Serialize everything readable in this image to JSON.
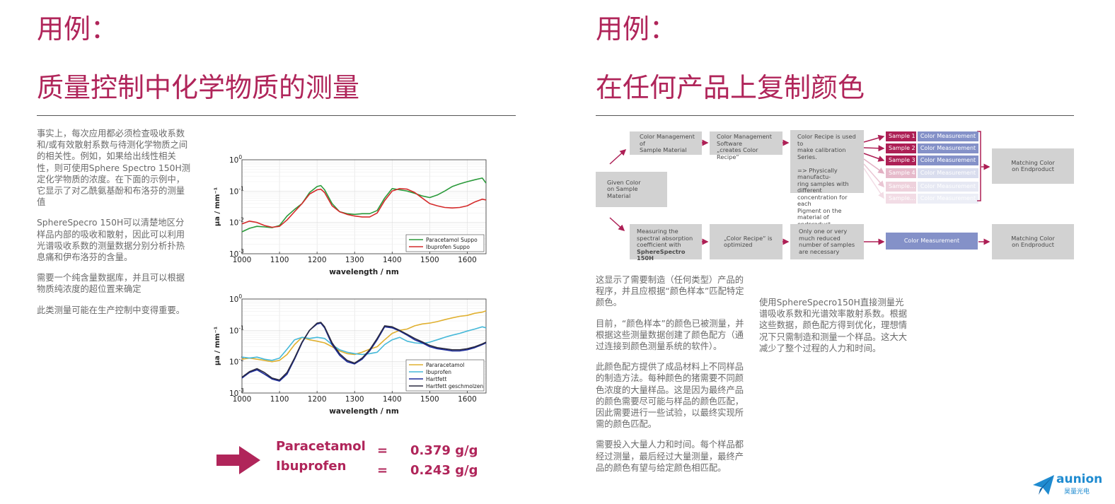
{
  "left": {
    "heading_small": "用例：",
    "heading_big": "质量控制中化学物质的测量",
    "paragraphs": [
      "事实上，每次应用都必须检查吸收系数和/或有效散射系数与待测化学物质之间的相关性。例如，如果给出线性相关性，则可使用Sphere Spectro 150H测定化学物质的浓度。在下面的示例中，它显示了对乙酰氨基酚和布洛芬的测量值",
      "SphereSpecro 150H可以清楚地区分样品内部的吸收和散射，因此可以利用光谱吸收系数的测量数据分别分析扑热息痛和伊布洛芬的含量。",
      "需要一个纯含量数据库，并且可以根据物质纯浓度的超位置来确定",
      "此类测量可能在生产控制中变得重要。"
    ],
    "results": [
      {
        "name": "Paracetamol",
        "eq": "=",
        "value": "0.379 g/g"
      },
      {
        "name": "Ibuprofen",
        "eq": "=",
        "value": "0.243 g/g"
      }
    ]
  },
  "right": {
    "heading_small": "用例：",
    "heading_big": "在任何产品上复制颜色",
    "flow": {
      "given": "Given Color\non Sample Material",
      "top": [
        "Color Management\nof\nSample Material",
        "Color Management\nSoftware\n„creates Color Recipe“",
        "Color Recipe is used to\nmake calibration Series.\n\n=> Physically manufactu-\nring samples with different\nconcentration for each\nPigment on the material of\nendproduct"
      ],
      "samples": [
        "Sample 1",
        "Sample 2",
        "Sample 3",
        "Sample 4",
        "Sample...",
        "Sample..."
      ],
      "measure_label": "Color Measurement",
      "matching": "Matching Color\non Endproduct",
      "bottom_first_lines": "Measuring the\nspectral absorption\ncoefficient with",
      "bottom_first_bold": "SphereSpectro 150H",
      "bottom": [
        "„Color Recipe“ is\noptimized",
        "Only one or very\nmuch reduced\nnumber of samples\nare necessary"
      ]
    },
    "col1": [
      "这显示了需要制造（任何类型）产品的程序，并且应根据“颜色样本”匹配特定颜色。",
      "目前，“颜色样本”的颜色已被测量，并根据这些测量数据创建了颜色配方（通过连接到颜色测量系统的软件）。",
      "此颜色配方提供了成品材料上不同样品的制造方法。每种颜色的猪需要不同颜色浓度的大量样品。这是因为最终产品的颜色需要尽可能与样品的颜色匹配，因此需要进行一些试验，以最终实现所需的颜色匹配。",
      "需要投入大量人力和时间。每个样品都经过测量，最后经过大量测量，最终产品的颜色有望与给定颜色相匹配。"
    ],
    "col2": "使用SphereSpecro150H直接测量光谱吸收系数和光谱效率散射系数。根据这些数据，颜色配方得到优化，理想情况下只需制造和测量一个样品。这大大减少了整个过程的人力和时间。"
  },
  "logo": {
    "name": "aunion",
    "sub": "昊量光电"
  },
  "chart_data": [
    {
      "type": "line",
      "xlabel": "wavelength / nm",
      "ylabel": "μa / mm⁻¹",
      "xlim": [
        1000,
        1650
      ],
      "ylim_log10": [
        -3,
        0
      ],
      "y_scale": "log",
      "x_ticks": [
        1000,
        1100,
        1200,
        1300,
        1400,
        1500,
        1600
      ],
      "legend": "bottom-right",
      "grid": true,
      "series": [
        {
          "name": "Paracetamol Suppo",
          "color": "#2a9a3a",
          "x": [
            1000,
            1020,
            1040,
            1060,
            1080,
            1100,
            1120,
            1140,
            1160,
            1180,
            1200,
            1210,
            1220,
            1240,
            1260,
            1280,
            1300,
            1320,
            1340,
            1360,
            1380,
            1400,
            1420,
            1440,
            1460,
            1480,
            1500,
            1520,
            1540,
            1560,
            1580,
            1600,
            1620,
            1640,
            1650
          ],
          "y": [
            0.005,
            0.0065,
            0.0075,
            0.0072,
            0.0068,
            0.008,
            0.016,
            0.026,
            0.04,
            0.09,
            0.14,
            0.15,
            0.11,
            0.04,
            0.022,
            0.019,
            0.018,
            0.019,
            0.019,
            0.024,
            0.06,
            0.12,
            0.11,
            0.1,
            0.085,
            0.07,
            0.062,
            0.075,
            0.1,
            0.14,
            0.17,
            0.2,
            0.23,
            0.26,
            0.18
          ]
        },
        {
          "name": "Ibuprofen Suppo",
          "color": "#d42a2a",
          "x": [
            1000,
            1020,
            1040,
            1060,
            1080,
            1100,
            1120,
            1140,
            1160,
            1180,
            1200,
            1210,
            1220,
            1240,
            1260,
            1280,
            1300,
            1320,
            1340,
            1360,
            1380,
            1400,
            1420,
            1440,
            1460,
            1480,
            1500,
            1520,
            1540,
            1560,
            1580,
            1600,
            1620,
            1640,
            1650
          ],
          "y": [
            0.009,
            0.011,
            0.01,
            0.008,
            0.007,
            0.0075,
            0.012,
            0.022,
            0.04,
            0.08,
            0.11,
            0.115,
            0.09,
            0.034,
            0.022,
            0.018,
            0.016,
            0.015,
            0.015,
            0.02,
            0.05,
            0.1,
            0.12,
            0.115,
            0.09,
            0.06,
            0.04,
            0.034,
            0.03,
            0.029,
            0.03,
            0.034,
            0.045,
            0.055,
            0.052
          ]
        }
      ]
    },
    {
      "type": "line",
      "xlabel": "wavelength / nm",
      "ylabel": "μa / mm⁻¹",
      "xlim": [
        1000,
        1650
      ],
      "ylim_log10": [
        -3,
        0
      ],
      "y_scale": "log",
      "x_ticks": [
        1000,
        1100,
        1200,
        1300,
        1400,
        1500,
        1600
      ],
      "legend": "bottom-right",
      "grid": true,
      "series": [
        {
          "name": "Pararacetamol",
          "color": "#e0b030",
          "x": [
            1000,
            1020,
            1040,
            1060,
            1080,
            1100,
            1120,
            1140,
            1160,
            1180,
            1200,
            1220,
            1240,
            1260,
            1280,
            1300,
            1320,
            1340,
            1360,
            1380,
            1400,
            1420,
            1440,
            1460,
            1480,
            1500,
            1520,
            1540,
            1560,
            1580,
            1600,
            1620,
            1640,
            1650
          ],
          "y": [
            0.012,
            0.013,
            0.012,
            0.011,
            0.01,
            0.011,
            0.017,
            0.035,
            0.06,
            0.05,
            0.045,
            0.04,
            0.03,
            0.022,
            0.018,
            0.017,
            0.02,
            0.025,
            0.03,
            0.05,
            0.08,
            0.1,
            0.11,
            0.14,
            0.16,
            0.17,
            0.19,
            0.22,
            0.25,
            0.28,
            0.3,
            0.35,
            0.38,
            0.42
          ]
        },
        {
          "name": "Ibuprofen",
          "color": "#45b8d8",
          "x": [
            1000,
            1020,
            1040,
            1060,
            1080,
            1100,
            1120,
            1140,
            1160,
            1180,
            1200,
            1220,
            1240,
            1260,
            1280,
            1300,
            1320,
            1340,
            1360,
            1380,
            1400,
            1420,
            1440,
            1460,
            1480,
            1500,
            1520,
            1540,
            1560,
            1580,
            1600,
            1620,
            1640,
            1650
          ],
          "y": [
            0.014,
            0.013,
            0.014,
            0.012,
            0.011,
            0.013,
            0.025,
            0.05,
            0.06,
            0.055,
            0.06,
            0.055,
            0.035,
            0.024,
            0.02,
            0.018,
            0.017,
            0.018,
            0.02,
            0.035,
            0.05,
            0.06,
            0.045,
            0.04,
            0.038,
            0.042,
            0.05,
            0.06,
            0.07,
            0.08,
            0.095,
            0.11,
            0.13,
            0.12
          ]
        },
        {
          "name": "Hartfett",
          "color": "#1a2a9a",
          "x": [
            1000,
            1020,
            1040,
            1060,
            1080,
            1100,
            1120,
            1140,
            1160,
            1180,
            1200,
            1210,
            1220,
            1240,
            1260,
            1280,
            1300,
            1320,
            1340,
            1360,
            1380,
            1400,
            1420,
            1440,
            1460,
            1480,
            1500,
            1520,
            1540,
            1560,
            1580,
            1600,
            1620,
            1640,
            1650
          ],
          "y": [
            0.003,
            0.0045,
            0.0055,
            0.004,
            0.0028,
            0.0024,
            0.004,
            0.012,
            0.04,
            0.1,
            0.16,
            0.17,
            0.12,
            0.035,
            0.016,
            0.01,
            0.0085,
            0.012,
            0.022,
            0.05,
            0.13,
            0.12,
            0.095,
            0.07,
            0.05,
            0.04,
            0.03,
            0.026,
            0.024,
            0.022,
            0.022,
            0.024,
            0.028,
            0.035,
            0.04
          ]
        },
        {
          "name": "Hartfett geschmolzen",
          "color": "#2a2a40",
          "x": [
            1000,
            1020,
            1040,
            1060,
            1080,
            1100,
            1120,
            1140,
            1160,
            1180,
            1200,
            1210,
            1220,
            1240,
            1260,
            1280,
            1300,
            1320,
            1340,
            1360,
            1380,
            1400,
            1420,
            1440,
            1460,
            1480,
            1500,
            1520,
            1540,
            1560,
            1580,
            1600,
            1620,
            1640,
            1650
          ],
          "y": [
            0.0032,
            0.0048,
            0.006,
            0.0045,
            0.003,
            0.0026,
            0.0045,
            0.013,
            0.042,
            0.1,
            0.17,
            0.18,
            0.13,
            0.04,
            0.018,
            0.011,
            0.009,
            0.013,
            0.024,
            0.055,
            0.14,
            0.13,
            0.1,
            0.075,
            0.055,
            0.043,
            0.033,
            0.028,
            0.026,
            0.024,
            0.024,
            0.026,
            0.03,
            0.037,
            0.042
          ]
        }
      ]
    }
  ]
}
